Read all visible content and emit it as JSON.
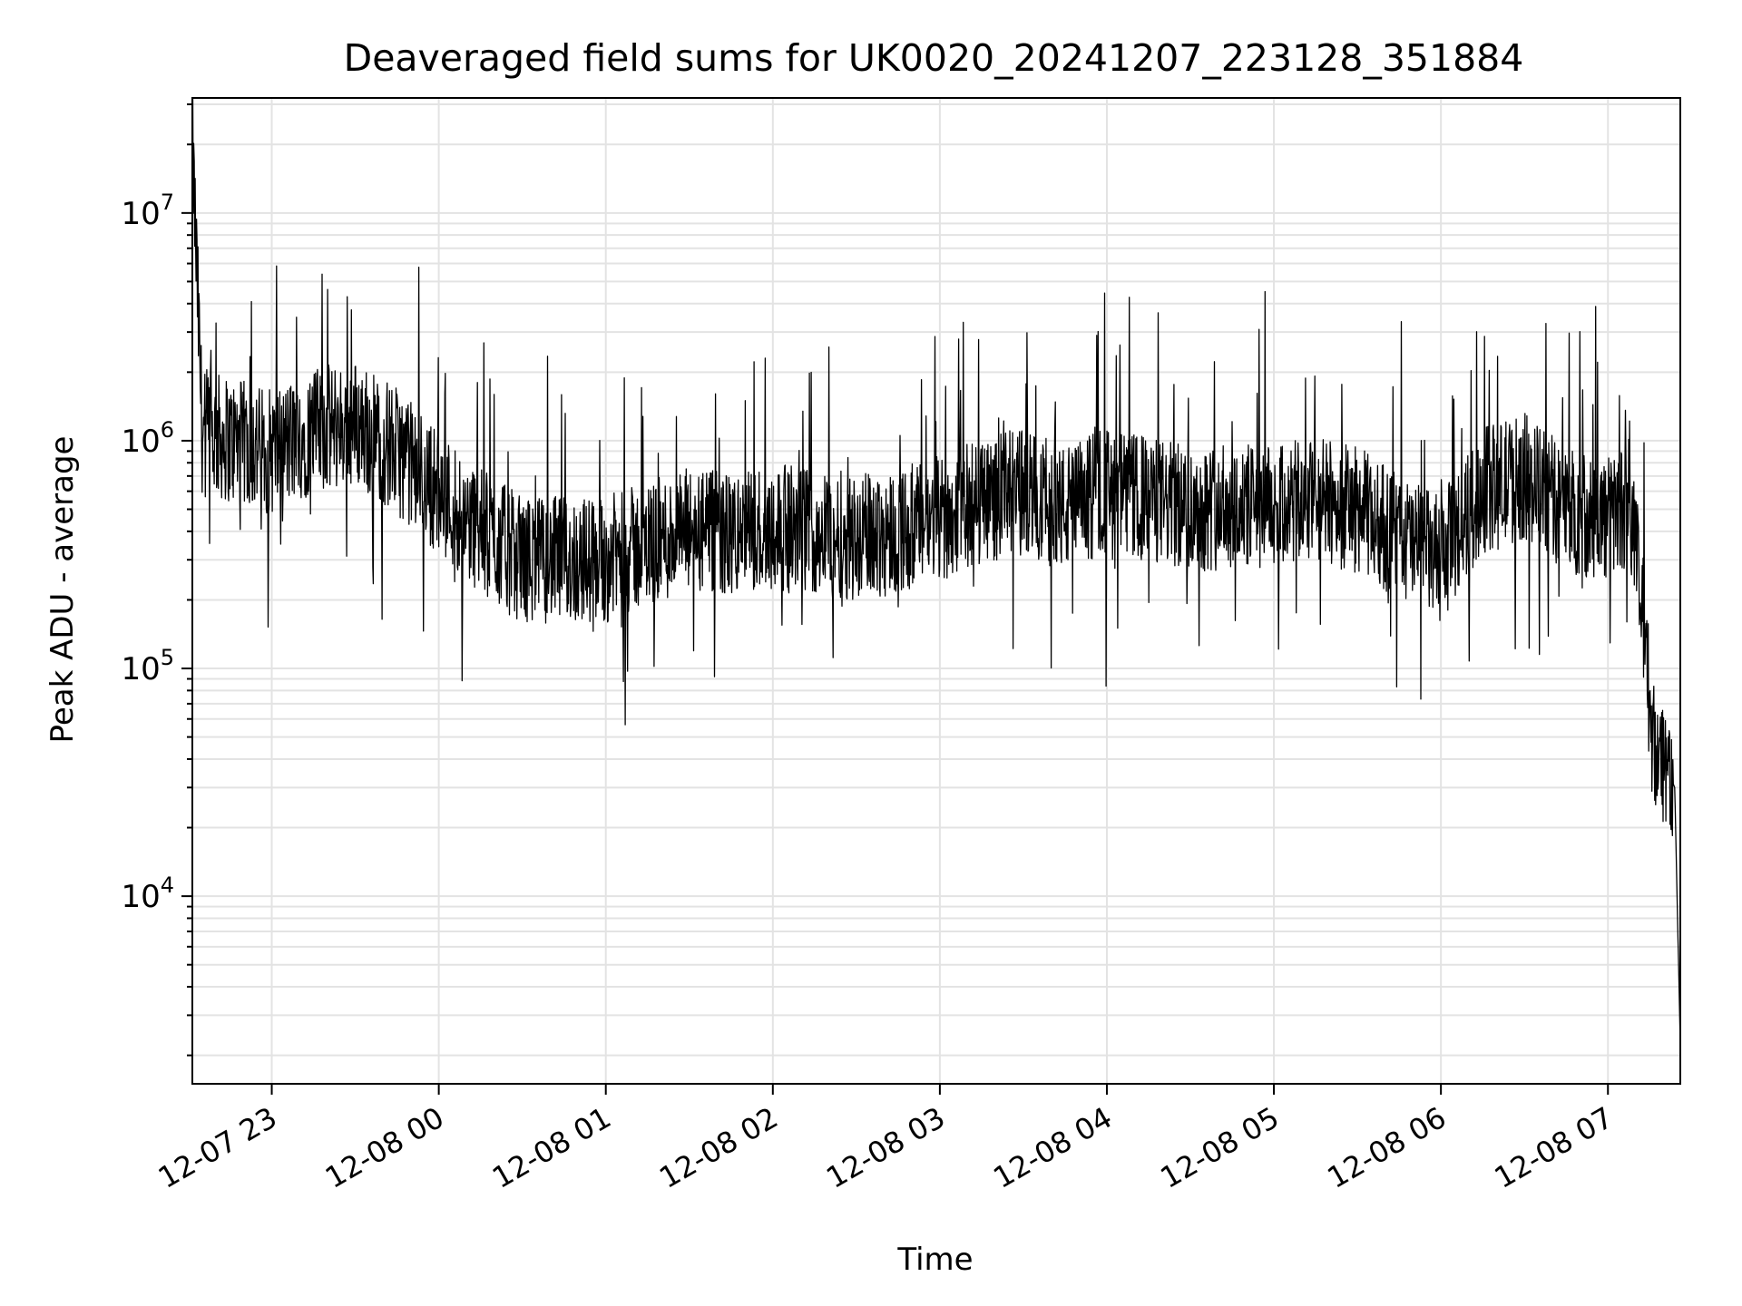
{
  "chart_data": {
    "type": "line",
    "title": "Deaveraged field sums for UK0020_20241207_223128_351884",
    "xlabel": "Time",
    "ylabel": "Peak ADU - average",
    "yscale": "log",
    "xlim": [
      "2024-12-07 22:31:28",
      "2024-12-08 07:26:00"
    ],
    "ylim": [
      1500,
      32000000
    ],
    "grid": true,
    "x_ticks": [
      {
        "t": "2024-12-07 23:00",
        "label": "12-07 23"
      },
      {
        "t": "2024-12-08 00:00",
        "label": "12-08 00"
      },
      {
        "t": "2024-12-08 01:00",
        "label": "12-08 01"
      },
      {
        "t": "2024-12-08 02:00",
        "label": "12-08 02"
      },
      {
        "t": "2024-12-08 03:00",
        "label": "12-08 03"
      },
      {
        "t": "2024-12-08 04:00",
        "label": "12-08 04"
      },
      {
        "t": "2024-12-08 05:00",
        "label": "12-08 05"
      },
      {
        "t": "2024-12-08 06:00",
        "label": "12-08 06"
      },
      {
        "t": "2024-12-08 07:00",
        "label": "12-08 07"
      }
    ],
    "y_ticks": [
      {
        "value": 10000,
        "base": "10",
        "exp": "4"
      },
      {
        "value": 100000,
        "base": "10",
        "exp": "5"
      },
      {
        "value": 1000000,
        "base": "10",
        "exp": "6"
      },
      {
        "value": 10000000,
        "base": "10",
        "exp": "7"
      }
    ],
    "series": [
      {
        "color": "#000000",
        "x": [
          "2024-12-07 22:31:28",
          "2024-12-07 22:35",
          "2024-12-07 22:45",
          "2024-12-07 23:00",
          "2024-12-07 23:15",
          "2024-12-07 23:30",
          "2024-12-07 23:45",
          "2024-12-08 00:00",
          "2024-12-08 00:15",
          "2024-12-08 00:30",
          "2024-12-08 00:45",
          "2024-12-08 01:00",
          "2024-12-08 01:15",
          "2024-12-08 01:30",
          "2024-12-08 01:45",
          "2024-12-08 02:00",
          "2024-12-08 02:15",
          "2024-12-08 02:30",
          "2024-12-08 02:45",
          "2024-12-08 03:00",
          "2024-12-08 03:15",
          "2024-12-08 03:30",
          "2024-12-08 03:45",
          "2024-12-08 04:00",
          "2024-12-08 04:15",
          "2024-12-08 04:30",
          "2024-12-08 04:45",
          "2024-12-08 05:00",
          "2024-12-08 05:15",
          "2024-12-08 05:30",
          "2024-12-08 05:45",
          "2024-12-08 06:00",
          "2024-12-08 06:15",
          "2024-12-08 06:30",
          "2024-12-08 06:45",
          "2024-12-08 07:00",
          "2024-12-08 07:08",
          "2024-12-08 07:12",
          "2024-12-08 07:16",
          "2024-12-08 07:20",
          "2024-12-08 07:24",
          "2024-12-08 07:26"
        ],
        "y": [
          20000000,
          1100000,
          1000000,
          900000,
          1100000,
          1200000,
          900000,
          600000,
          400000,
          300000,
          300000,
          300000,
          350000,
          400000,
          380000,
          420000,
          400000,
          380000,
          400000,
          450000,
          550000,
          600000,
          500000,
          600000,
          550000,
          500000,
          520000,
          500000,
          550000,
          500000,
          380000,
          300000,
          600000,
          700000,
          500000,
          450000,
          550000,
          200000,
          50000,
          40000,
          30000,
          2200
        ],
        "notes_amplitude_noisy": true
      }
    ]
  }
}
